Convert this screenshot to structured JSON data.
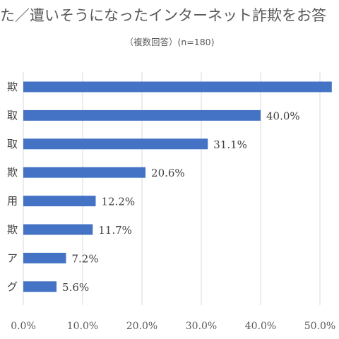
{
  "chart_data": {
    "type": "bar",
    "orientation": "horizontal",
    "title": "た／遭いそうになったインターネット詐欺をお答",
    "subtitle": "（複数回答）(n=180)",
    "categories": [
      "欺",
      "取",
      "取",
      "欺",
      "用",
      "欺",
      "ア",
      "グ"
    ],
    "values": [
      52.0,
      40.0,
      31.1,
      20.6,
      12.2,
      11.7,
      7.2,
      5.6
    ],
    "value_labels": [
      "",
      "40.0%",
      "31.1%",
      "20.6%",
      "12.2%",
      "11.7%",
      "7.2%",
      "5.6%"
    ],
    "x_ticks": [
      "0.0%",
      "10.0%",
      "20.0%",
      "30.0%",
      "40.0%",
      "50.0%"
    ],
    "xlim": [
      0,
      50
    ],
    "grid": "vertical",
    "bar_color": "#4472c4",
    "grid_color": "#d9d9d9"
  }
}
